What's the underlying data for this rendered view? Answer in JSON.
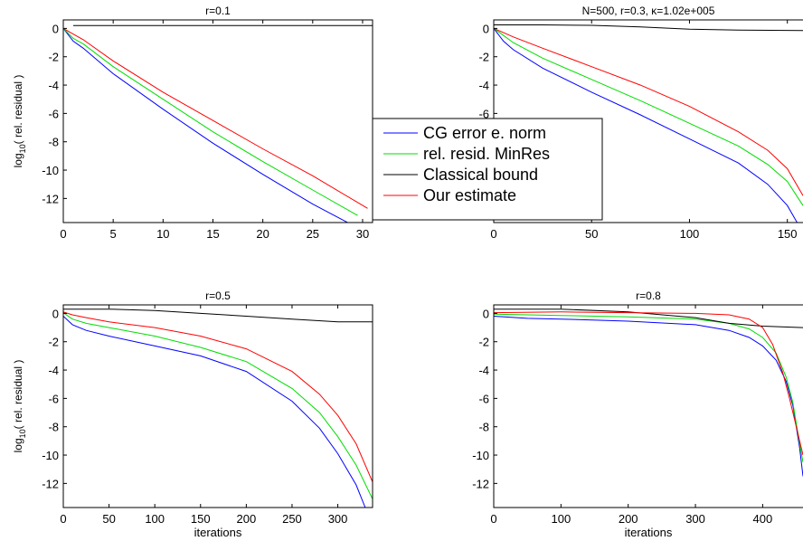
{
  "colors": {
    "cg": "#0000ff",
    "minres": "#00dd00",
    "classical": "#000000",
    "estimate": "#ff0000"
  },
  "legend": {
    "placement": "center",
    "entries": [
      "CG error e. norm",
      "rel. resid. MinRes",
      "Classical bound",
      "Our estimate"
    ]
  },
  "ylabel_prefix": "log",
  "ylabel_sub": "10",
  "ylabel_rest": "( rel. residual )",
  "chart_data": [
    {
      "type": "line",
      "title": "r=0.1",
      "xlabel": "",
      "xlim": [
        0,
        31
      ],
      "ylim": [
        -13.7,
        0.6
      ],
      "xticks": [
        0,
        5,
        10,
        15,
        20,
        25,
        30
      ],
      "yticks": [
        0,
        -2,
        -4,
        -6,
        -8,
        -10,
        -12
      ],
      "grid": false,
      "series": [
        {
          "name": "CG error e. norm",
          "x": [
            0,
            1,
            2,
            5,
            10,
            15,
            20,
            25,
            28.5
          ],
          "y": [
            0,
            -0.9,
            -1.4,
            -3.2,
            -5.7,
            -8.1,
            -10.3,
            -12.4,
            -13.7
          ]
        },
        {
          "name": "rel. resid. MinRes",
          "x": [
            0,
            1,
            2,
            5,
            10,
            15,
            20,
            25,
            29.5
          ],
          "y": [
            0,
            -0.7,
            -1.1,
            -2.7,
            -5.0,
            -7.3,
            -9.4,
            -11.4,
            -13.2
          ]
        },
        {
          "name": "Classical bound",
          "x": [
            1,
            31
          ],
          "y": [
            0.2,
            0.2
          ]
        },
        {
          "name": "Our estimate",
          "x": [
            0,
            1,
            2,
            5,
            10,
            15,
            20,
            25,
            30.5
          ],
          "y": [
            0,
            -0.4,
            -0.8,
            -2.3,
            -4.5,
            -6.5,
            -8.5,
            -10.4,
            -12.7
          ]
        }
      ]
    },
    {
      "type": "line",
      "title": "N=500, r=0.3, κ=1.02e+005",
      "xlabel": "",
      "xlim": [
        0,
        158
      ],
      "ylim": [
        -13.7,
        0.6
      ],
      "xticks": [
        0,
        50,
        100,
        150
      ],
      "yticks": [
        0,
        -2,
        -4,
        -6,
        -8,
        -10,
        -12
      ],
      "grid": false,
      "series": [
        {
          "name": "CG error e. norm",
          "x": [
            0,
            5,
            10,
            25,
            50,
            75,
            100,
            125,
            140,
            150,
            155
          ],
          "y": [
            0,
            -0.9,
            -1.5,
            -2.8,
            -4.5,
            -6.1,
            -7.8,
            -9.5,
            -11.0,
            -12.5,
            -13.7
          ]
        },
        {
          "name": "rel. resid. MinRes",
          "x": [
            0,
            5,
            10,
            25,
            50,
            75,
            100,
            125,
            140,
            150,
            158
          ],
          "y": [
            0,
            -0.5,
            -1.0,
            -2.1,
            -3.6,
            -5.1,
            -6.7,
            -8.3,
            -9.6,
            -10.8,
            -12.5
          ]
        },
        {
          "name": "Classical bound",
          "x": [
            0,
            25,
            50,
            75,
            100,
            125,
            158
          ],
          "y": [
            0.25,
            0.25,
            0.22,
            0.1,
            -0.05,
            -0.12,
            -0.15
          ]
        },
        {
          "name": "Our estimate",
          "x": [
            0,
            5,
            10,
            25,
            50,
            75,
            100,
            125,
            140,
            150,
            158
          ],
          "y": [
            0,
            -0.3,
            -0.6,
            -1.4,
            -2.7,
            -4.0,
            -5.5,
            -7.3,
            -8.6,
            -9.9,
            -11.8
          ]
        }
      ]
    },
    {
      "type": "line",
      "title": "r=0.5",
      "xlabel": "iterations",
      "xlim": [
        0,
        338
      ],
      "ylim": [
        -13.7,
        0.6
      ],
      "xticks": [
        0,
        50,
        100,
        150,
        200,
        250,
        300
      ],
      "yticks": [
        0,
        -2,
        -4,
        -6,
        -8,
        -10,
        -12
      ],
      "grid": false,
      "series": [
        {
          "name": "CG error e. norm",
          "x": [
            0,
            10,
            25,
            50,
            100,
            150,
            200,
            250,
            280,
            300,
            320,
            330
          ],
          "y": [
            -0.2,
            -0.8,
            -1.2,
            -1.6,
            -2.3,
            -3.0,
            -4.1,
            -6.2,
            -8.1,
            -9.9,
            -12.1,
            -13.7
          ]
        },
        {
          "name": "rel. resid. MinRes",
          "x": [
            0,
            10,
            25,
            50,
            100,
            150,
            200,
            250,
            280,
            300,
            320,
            338
          ],
          "y": [
            0.05,
            -0.4,
            -0.7,
            -1.0,
            -1.6,
            -2.4,
            -3.4,
            -5.3,
            -7.0,
            -8.7,
            -10.7,
            -13.1
          ]
        },
        {
          "name": "Classical bound",
          "x": [
            0,
            50,
            100,
            150,
            200,
            250,
            300,
            338
          ],
          "y": [
            0.3,
            0.3,
            0.2,
            0.0,
            -0.2,
            -0.4,
            -0.6,
            -0.6
          ]
        },
        {
          "name": "Our estimate",
          "x": [
            0,
            10,
            25,
            50,
            100,
            150,
            200,
            250,
            280,
            300,
            320,
            338
          ],
          "y": [
            0.1,
            -0.1,
            -0.3,
            -0.6,
            -1.0,
            -1.6,
            -2.5,
            -4.1,
            -5.7,
            -7.2,
            -9.2,
            -11.9
          ]
        }
      ]
    },
    {
      "type": "line",
      "title": "r=0.8",
      "xlabel": "iterations",
      "xlim": [
        0,
        460
      ],
      "ylim": [
        -13.7,
        0.6
      ],
      "xticks": [
        0,
        100,
        200,
        300,
        400
      ],
      "yticks": [
        0,
        -2,
        -4,
        -6,
        -8,
        -10,
        -12
      ],
      "grid": false,
      "series": [
        {
          "name": "CG error e. norm",
          "x": [
            0,
            50,
            100,
            200,
            300,
            350,
            380,
            400,
            420,
            435,
            445,
            455,
            460
          ],
          "y": [
            -0.2,
            -0.35,
            -0.4,
            -0.55,
            -0.8,
            -1.2,
            -1.7,
            -2.3,
            -3.3,
            -4.8,
            -6.5,
            -9.5,
            -11.5
          ]
        },
        {
          "name": "rel. resid. MinRes",
          "x": [
            0,
            50,
            100,
            200,
            300,
            350,
            380,
            400,
            420,
            435,
            445,
            455,
            460
          ],
          "y": [
            -0.05,
            -0.1,
            -0.15,
            -0.25,
            -0.4,
            -0.7,
            -1.1,
            -1.7,
            -2.8,
            -4.5,
            -6.3,
            -9.2,
            -10.5
          ]
        },
        {
          "name": "Classical bound",
          "x": [
            0,
            100,
            200,
            300,
            350,
            400,
            460
          ],
          "y": [
            0.3,
            0.3,
            0.1,
            -0.3,
            -0.7,
            -0.9,
            -1.0
          ]
        },
        {
          "name": "Our estimate",
          "x": [
            0,
            100,
            200,
            300,
            350,
            380,
            400,
            415,
            430,
            440,
            450,
            460
          ],
          "y": [
            0.05,
            0.1,
            0.05,
            0.0,
            -0.1,
            -0.4,
            -1.0,
            -2.2,
            -4.2,
            -6.0,
            -8.0,
            -10.0
          ]
        }
      ]
    }
  ]
}
